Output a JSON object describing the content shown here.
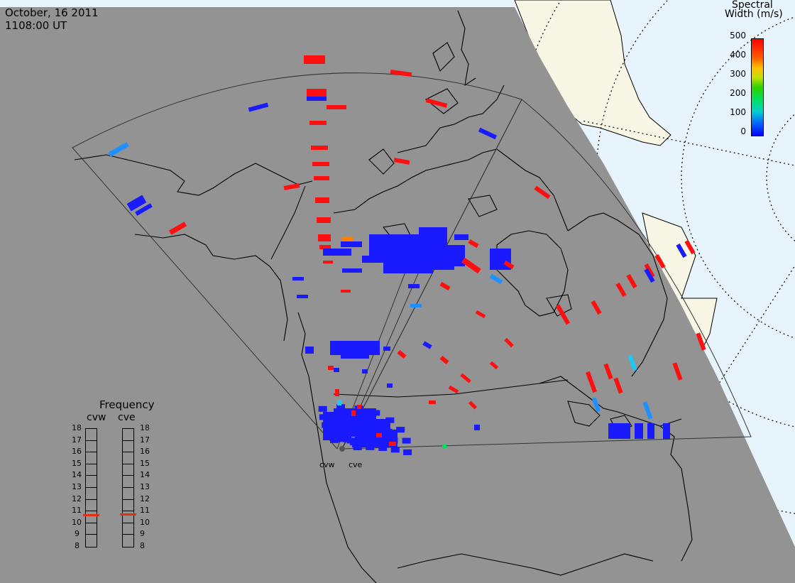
{
  "title": {
    "date": "October, 16 2011",
    "time": "1108:00 UT"
  },
  "colorbar": {
    "title_line1": "Spectral",
    "title_line2": "Width (m/s)",
    "ticks": [
      "500",
      "400",
      "300",
      "200",
      "100",
      "0"
    ],
    "min": 0,
    "max": 500
  },
  "frequency_panel": {
    "title": "Frequency",
    "radars": [
      {
        "name": "cvw",
        "selected_mhz": 10.7
      },
      {
        "name": "cve",
        "selected_mhz": 10.8
      }
    ],
    "scale": [
      "18",
      "17",
      "16",
      "15",
      "14",
      "13",
      "12",
      "11",
      "10",
      "9",
      "8"
    ]
  },
  "radar_sites": {
    "cvw": "cvw",
    "cve": "cve"
  },
  "colors": {
    "night": "#939393",
    "day_ocean": "#e8f4fc",
    "day_land": "#f8f6e4",
    "coast": "#000000",
    "fov": "#444444",
    "low_width": "#1a1aff",
    "high_width": "#ff1010",
    "mid_width": "#1e90ff",
    "cyan_width": "#1ec8f0",
    "green_width": "#00e060",
    "orange_width": "#ff8000"
  }
}
